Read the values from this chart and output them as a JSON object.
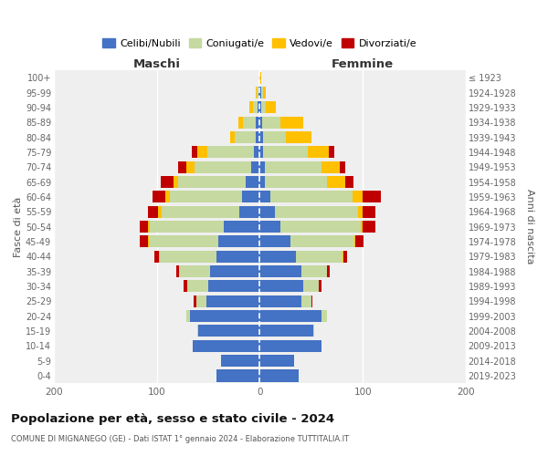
{
  "age_groups": [
    "0-4",
    "5-9",
    "10-14",
    "15-19",
    "20-24",
    "25-29",
    "30-34",
    "35-39",
    "40-44",
    "45-49",
    "50-54",
    "55-59",
    "60-64",
    "65-69",
    "70-74",
    "75-79",
    "80-84",
    "85-89",
    "90-94",
    "95-99",
    "100+"
  ],
  "birth_years": [
    "2019-2023",
    "2014-2018",
    "2009-2013",
    "2004-2008",
    "1999-2003",
    "1994-1998",
    "1989-1993",
    "1984-1988",
    "1979-1983",
    "1974-1978",
    "1969-1973",
    "1964-1968",
    "1959-1963",
    "1954-1958",
    "1949-1953",
    "1944-1948",
    "1939-1943",
    "1934-1938",
    "1929-1933",
    "1924-1928",
    "≤ 1923"
  ],
  "colors": {
    "celibe": "#4472c4",
    "coniugato": "#c5d9a0",
    "vedovo": "#ffc000",
    "divorziato": "#c00000"
  },
  "maschi": {
    "celibe": [
      42,
      38,
      65,
      60,
      68,
      52,
      50,
      48,
      42,
      40,
      35,
      20,
      17,
      14,
      8,
      6,
      4,
      4,
      2,
      1,
      0
    ],
    "coniugato": [
      0,
      0,
      0,
      1,
      3,
      10,
      20,
      30,
      55,
      68,
      72,
      75,
      70,
      65,
      55,
      45,
      20,
      12,
      5,
      2,
      0
    ],
    "vedovo": [
      0,
      0,
      0,
      0,
      0,
      0,
      0,
      0,
      1,
      1,
      2,
      4,
      5,
      5,
      8,
      10,
      5,
      5,
      3,
      1,
      0
    ],
    "divorziato": [
      0,
      0,
      0,
      0,
      0,
      2,
      4,
      3,
      4,
      8,
      8,
      10,
      12,
      12,
      8,
      5,
      0,
      0,
      0,
      0,
      0
    ]
  },
  "femmine": {
    "nubile": [
      38,
      33,
      60,
      52,
      60,
      40,
      42,
      40,
      35,
      30,
      20,
      15,
      10,
      5,
      5,
      3,
      3,
      2,
      1,
      1,
      0
    ],
    "coniugata": [
      0,
      0,
      0,
      1,
      5,
      10,
      15,
      25,
      45,
      62,
      78,
      80,
      80,
      60,
      55,
      44,
      22,
      18,
      5,
      2,
      0
    ],
    "vedova": [
      0,
      0,
      0,
      0,
      0,
      0,
      0,
      0,
      1,
      1,
      2,
      5,
      10,
      18,
      18,
      20,
      25,
      22,
      10,
      3,
      1
    ],
    "divorziata": [
      0,
      0,
      0,
      0,
      0,
      1,
      3,
      3,
      4,
      8,
      12,
      12,
      18,
      8,
      5,
      5,
      0,
      0,
      0,
      0,
      0
    ]
  },
  "xlim": 200,
  "title": "Popolazione per età, sesso e stato civile - 2024",
  "subtitle": "COMUNE DI MIGNANEGO (GE) - Dati ISTAT 1° gennaio 2024 - Elaborazione TUTTITALIA.IT",
  "ylabel_left": "Fasce di età",
  "ylabel_right": "Anni di nascita",
  "label_maschi": "Maschi",
  "label_femmine": "Femmine",
  "legend_labels": [
    "Celibi/Nubili",
    "Coniugati/e",
    "Vedovi/e",
    "Divorziati/e"
  ],
  "bg_color": "#efefef"
}
